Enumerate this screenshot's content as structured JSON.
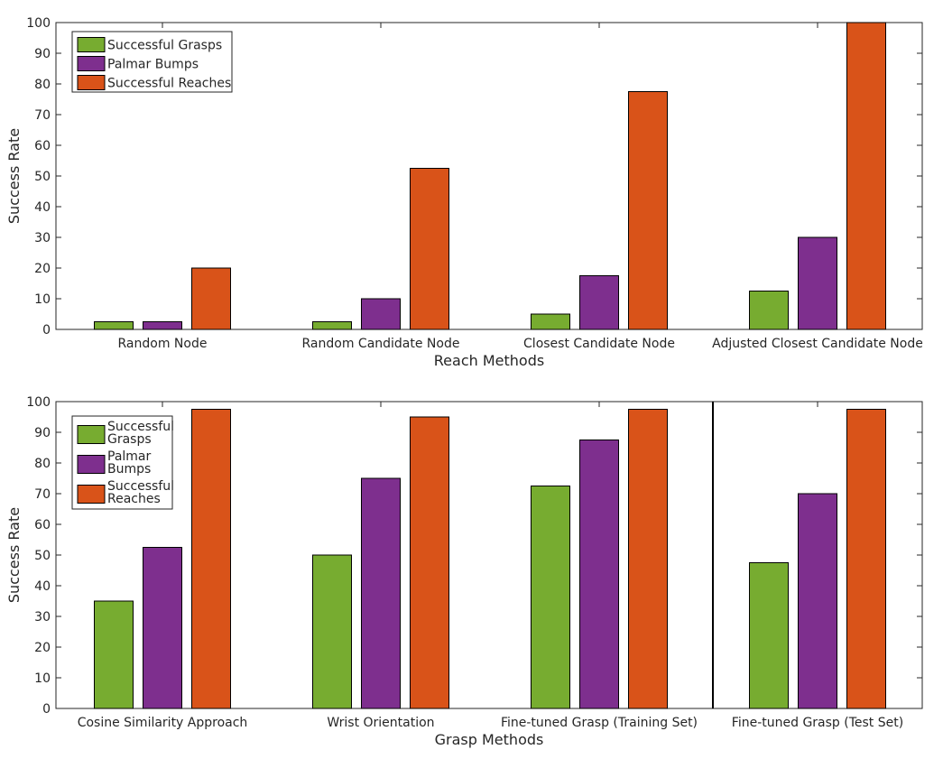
{
  "chart_data": [
    {
      "type": "bar",
      "xlabel": "Reach Methods",
      "ylabel": "Success Rate",
      "ylim": [
        0,
        100
      ],
      "yticks": [
        0,
        10,
        20,
        30,
        40,
        50,
        60,
        70,
        80,
        90,
        100
      ],
      "categories": [
        "Random Node",
        "Random Candidate Node",
        "Closest Candidate Node",
        "Adjusted Closest Candidate Node"
      ],
      "series": [
        {
          "name": "Successful Grasps",
          "color": "#77ac30",
          "values": [
            2.5,
            2.5,
            5,
            12.5
          ]
        },
        {
          "name": "Palmar Bumps",
          "color": "#7e2f8e",
          "values": [
            2.5,
            10,
            17.5,
            30
          ]
        },
        {
          "name": "Successful Reaches",
          "color": "#d95319",
          "values": [
            20,
            52.5,
            77.5,
            100
          ]
        }
      ],
      "legend": {
        "placement": "top-left",
        "labels": [
          [
            "Successful Grasps"
          ],
          [
            "Palmar Bumps"
          ],
          [
            "Successful Reaches"
          ]
        ]
      }
    },
    {
      "type": "bar",
      "xlabel": "Grasp Methods",
      "ylabel": "Success Rate",
      "ylim": [
        0,
        100
      ],
      "yticks": [
        0,
        10,
        20,
        30,
        40,
        50,
        60,
        70,
        80,
        90,
        100
      ],
      "categories": [
        "Cosine Similarity Approach",
        "Wrist Orientation",
        "Fine-tuned Grasp (Training Set)",
        "Fine-tuned Grasp (Test Set)"
      ],
      "series": [
        {
          "name": "Successful Grasps",
          "color": "#77ac30",
          "values": [
            35,
            50,
            72.5,
            47.5
          ]
        },
        {
          "name": "Palmar Bumps",
          "color": "#7e2f8e",
          "values": [
            52.5,
            75,
            87.5,
            70
          ]
        },
        {
          "name": "Successful Reaches",
          "color": "#d95319",
          "values": [
            97.5,
            95,
            97.5,
            97.5
          ]
        }
      ],
      "legend": {
        "placement": "top-left",
        "labels": [
          [
            "Successful",
            "Grasps"
          ],
          [
            "Palmar",
            "Bumps"
          ],
          [
            "Successful",
            "Reaches"
          ]
        ]
      },
      "separator_after_category": 3
    }
  ]
}
